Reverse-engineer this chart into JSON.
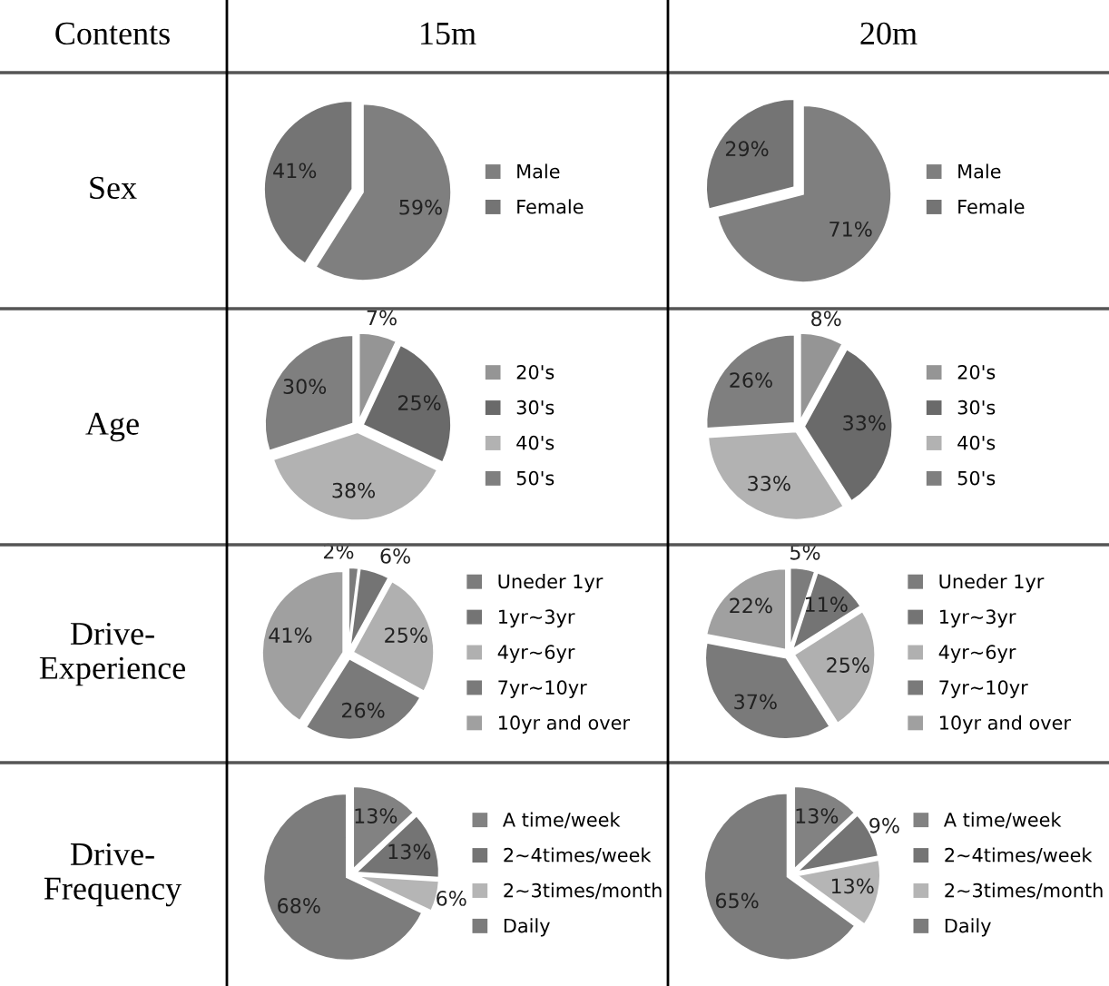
{
  "chart_data": [
    {
      "type": "pie",
      "title": "15m",
      "ylabel": "Sex",
      "annotations": [
        "Contents"
      ],
      "categories": [
        "Male",
        "Female"
      ],
      "values": [
        59,
        41
      ],
      "value_labels": [
        "59%",
        "41%"
      ],
      "colors": [
        "#7f7f7f",
        "#747474"
      ],
      "legend": "right"
    },
    {
      "type": "pie",
      "title": "20m",
      "categories": [
        "Male",
        "Female"
      ],
      "values": [
        71,
        29
      ],
      "value_labels": [
        "71%",
        "29%"
      ],
      "colors": [
        "#7f7f7f",
        "#747474"
      ],
      "legend": "right"
    },
    {
      "type": "pie",
      "ylabel": "Age",
      "categories": [
        "20's",
        "30's",
        "40's",
        "50's"
      ],
      "values": [
        7,
        25,
        38,
        30
      ],
      "value_labels": [
        "7%",
        "25%",
        "38%",
        "30%"
      ],
      "colors": [
        "#959595",
        "#6a6a6a",
        "#b2b2b2",
        "#7f7f7f"
      ],
      "legend": "right"
    },
    {
      "type": "pie",
      "categories": [
        "20's",
        "30's",
        "40's",
        "50's"
      ],
      "values": [
        8,
        33,
        33,
        26
      ],
      "value_labels": [
        "8%",
        "33%",
        "33%",
        "26%"
      ],
      "colors": [
        "#959595",
        "#6a6a6a",
        "#b2b2b2",
        "#7f7f7f"
      ],
      "legend": "right"
    },
    {
      "type": "pie",
      "ylabel": "Drive-\nExperience",
      "categories": [
        "Uneder 1yr",
        "1yr~3yr",
        "4yr~6yr",
        "7yr~10yr",
        "10yr and over"
      ],
      "values": [
        2,
        6,
        25,
        26,
        41
      ],
      "value_labels": [
        "2%",
        "6%",
        "25%",
        "26%",
        "41%"
      ],
      "colors": [
        "#7c7c7c",
        "#747474",
        "#b0b0b0",
        "#7a7a7a",
        "#a0a0a0"
      ],
      "legend": "right"
    },
    {
      "type": "pie",
      "categories": [
        "Uneder 1yr",
        "1yr~3yr",
        "4yr~6yr",
        "7yr~10yr",
        "10yr and over"
      ],
      "values": [
        5,
        11,
        25,
        37,
        22
      ],
      "value_labels": [
        "5%",
        "11%",
        "25%",
        "37%",
        "22%"
      ],
      "colors": [
        "#7c7c7c",
        "#747474",
        "#b0b0b0",
        "#7a7a7a",
        "#a0a0a0"
      ],
      "legend": "right"
    },
    {
      "type": "pie",
      "ylabel": "Drive-\nFrequency",
      "categories": [
        "A time/week",
        "2~4times/week",
        "2~3times/month",
        "Daily"
      ],
      "values": [
        13,
        13,
        6,
        68
      ],
      "value_labels": [
        "13%",
        "13%",
        "6%",
        "68%"
      ],
      "colors": [
        "#828282",
        "#747474",
        "#b5b5b5",
        "#7c7c7c"
      ],
      "legend": "right"
    },
    {
      "type": "pie",
      "categories": [
        "A time/week",
        "2~4times/week",
        "2~3times/month",
        "Daily"
      ],
      "values": [
        13,
        9,
        13,
        65
      ],
      "value_labels": [
        "13%",
        "9%",
        "13%",
        "65%"
      ],
      "colors": [
        "#828282",
        "#747474",
        "#b5b5b5",
        "#7c7c7c"
      ],
      "legend": "right"
    }
  ]
}
